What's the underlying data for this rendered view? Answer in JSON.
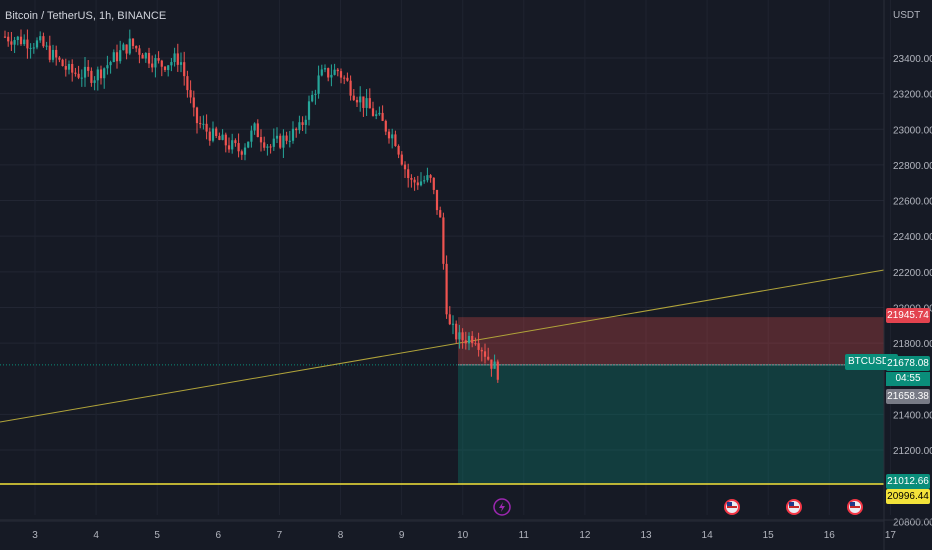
{
  "header": {
    "title": "Bitcoin / TetherUS, 1h, BINANCE",
    "currency": "USDT"
  },
  "y_axis": {
    "ticks": [
      {
        "label": "23400.00",
        "v": 23400
      },
      {
        "label": "23200.00",
        "v": 23200
      },
      {
        "label": "23000.00",
        "v": 23000
      },
      {
        "label": "22800.00",
        "v": 22800
      },
      {
        "label": "22600.00",
        "v": 22600
      },
      {
        "label": "22400.00",
        "v": 22400
      },
      {
        "label": "22200.00",
        "v": 22200
      },
      {
        "label": "22000.00",
        "v": 22000
      },
      {
        "label": "21800.00",
        "v": 21800
      },
      {
        "label": "21400.00",
        "v": 21400
      },
      {
        "label": "21200.00",
        "v": 21200
      },
      {
        "label": "20800.00",
        "v": 20800
      }
    ]
  },
  "x_axis": {
    "ticks": [
      "3",
      "4",
      "5",
      "6",
      "7",
      "8",
      "9",
      "10",
      "11",
      "12",
      "13",
      "14",
      "15",
      "16",
      "17"
    ]
  },
  "badges": {
    "stop": "21945.74",
    "symbol": "BTCUSDT",
    "last_price": "21678.08",
    "countdown": "04:55",
    "entry": "21658.38",
    "target": "21012.66",
    "support": "20996.44"
  },
  "colors": {
    "up": "#26a69a",
    "down": "#ef5350",
    "bg": "#161a25",
    "trend": "#b1a43a",
    "support": "#f3e33a"
  },
  "event_icons": [
    "lightning-icon",
    "us-flag-icon",
    "us-flag-icon",
    "us-flag-icon"
  ]
}
